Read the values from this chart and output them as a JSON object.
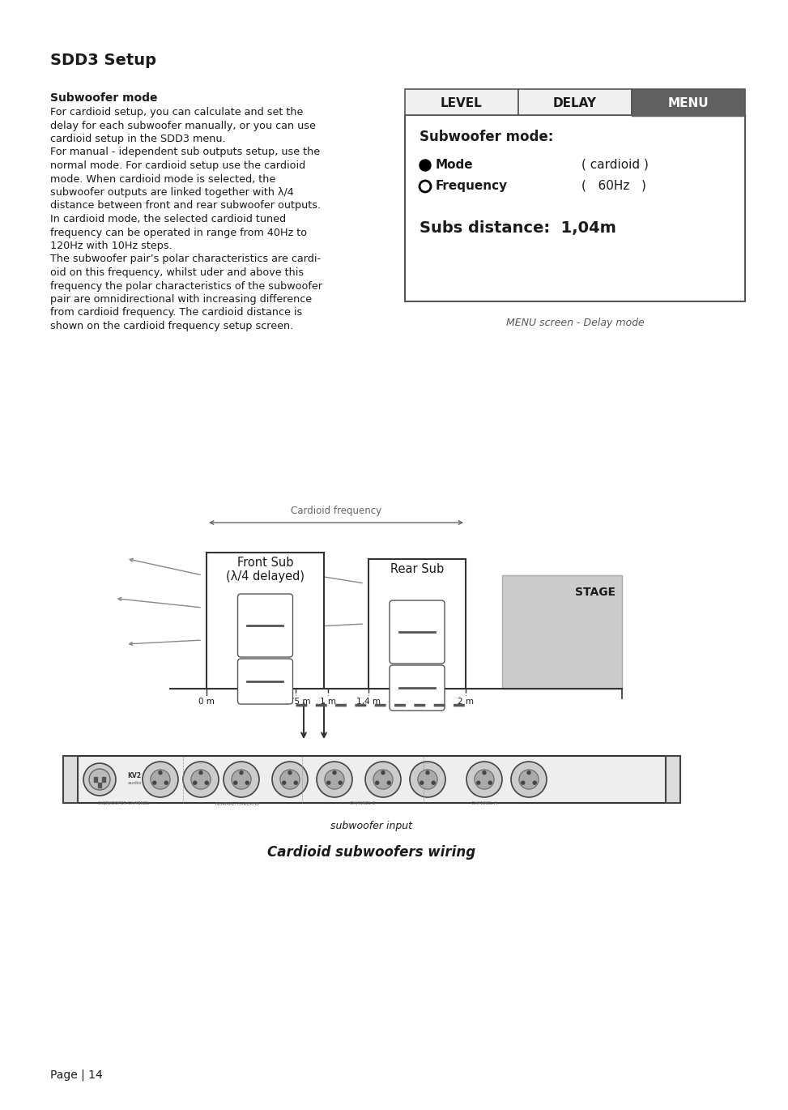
{
  "title": "SDD3 Setup",
  "section_title": "Subwoofer mode",
  "body_text": "For cardioid setup, you can calculate and set the\ndelay for each subwoofer manually, or you can use\ncardioid setup in the SDD3 menu.\nFor manual - idependent sub outputs setup, use the\nnormal mode. For cardioid setup use the cardioid\nmode. When cardioid mode is selected, the\nsubwoofer outputs are linked together with λ/4\ndistance between front and rear subwoofer outputs.\nIn cardioid mode, the selected cardioid tuned\nfrequency can be operated in range from 40Hz to\n120Hz with 10Hz steps.\nThe subwoofer pair’s polar characteristics are cardi-\noid on this frequency, whilst uder and above this\nfrequency the polar characteristics of the subwoofer\npair are omnidirectional with increasing difference\nfrom cardioid frequency. The cardioid distance is\nshown on the cardioid frequency setup screen.",
  "menu_tabs": [
    "LEVEL",
    "DELAY",
    "MENU"
  ],
  "menu_active_tab": "MENU",
  "menu_content_title": "Subwoofer mode:",
  "menu_mode_label": "Mode",
  "menu_mode_value": "( cardioid )",
  "menu_freq_label": "Frequency",
  "menu_freq_value": "(   60Hz   )",
  "menu_subs_distance": "Subs distance:  1,04m",
  "menu_caption": "MENU screen - Delay mode",
  "diagram_label_cardioid": "Cardioid frequency",
  "diagram_label_front": "Front Sub\n(λ/4 delayed)",
  "diagram_label_rear": "Rear Sub",
  "diagram_label_stage": "STAGE",
  "diagram_ruler_marks": [
    "0 m",
    "0,75 m",
    "1 m",
    "1,4 m",
    "2 m"
  ],
  "diagram_caption_input": "subwoofer input",
  "diagram_caption_main": "Cardioid subwoofers wiring",
  "page_number": "Page | 14",
  "bg_color": "#ffffff",
  "text_color": "#1a1a1a",
  "menu_active_bg": "#606060",
  "menu_active_fg": "#ffffff",
  "menu_inactive_bg": "#f0f0f0",
  "menu_inactive_fg": "#1a1a1a",
  "stage_color": "#cccccc",
  "line_color": "#333333"
}
